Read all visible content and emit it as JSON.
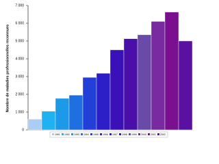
{
  "chart_data": {
    "type": "bar",
    "y_label": "Nombre de maladies professionnelles reconnues",
    "categories": [
      "1991",
      "1992",
      "1993",
      "1994",
      "1995",
      "1996",
      "1997",
      "1998",
      "1999",
      "2000",
      "2001",
      "2002"
    ],
    "values": [
      600,
      1050,
      1770,
      1950,
      2950,
      3180,
      4500,
      5130,
      5350,
      6100,
      6630,
      5000
    ],
    "colors": [
      "#a9cdf5",
      "#1fb2f0",
      "#1c9ae8",
      "#1e6fe0",
      "#2240d8",
      "#2c1fc8",
      "#3c10b8",
      "#4a0fa8",
      "#6a4aa8",
      "#7a2aa0",
      "#7a1090",
      "#5a10a0"
    ],
    "ylim": [
      0,
      7000
    ],
    "yticks": [
      0,
      {
        "value": 1000,
        "label": "1 000"
      },
      {
        "value": 2000,
        "label": "2 000"
      },
      {
        "value": 3000,
        "label": "3 000"
      },
      {
        "value": 4000,
        "label": "4 000"
      },
      {
        "value": 5000,
        "label": "5 000"
      },
      {
        "value": 6000,
        "label": "6 000"
      },
      {
        "value": 7000,
        "label": "7 000"
      }
    ],
    "legend": true
  }
}
